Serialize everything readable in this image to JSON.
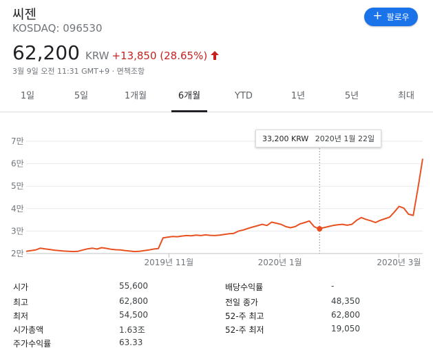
{
  "header": {
    "name": "씨젠",
    "ticker": "KOSDAQ: 096530",
    "follow_label": "팔로우"
  },
  "quote": {
    "price": "62,200",
    "currency": "KRW",
    "change": "+13,850 (28.65%)",
    "meta": "3월 9일 오전 11:31 GMT+9 · 면책조항"
  },
  "tabs": [
    {
      "label": "1일"
    },
    {
      "label": "5일"
    },
    {
      "label": "1개월"
    },
    {
      "label": "6개월",
      "active": true
    },
    {
      "label": "YTD"
    },
    {
      "label": "1년"
    },
    {
      "label": "5년"
    },
    {
      "label": "최대"
    }
  ],
  "colors": {
    "accent": "#1a73e8",
    "line": "#e8501f",
    "down": "#c5221f"
  },
  "chart_data": {
    "type": "line",
    "y_ticks": [
      "7만",
      "6만",
      "5만",
      "4만",
      "3만",
      "2만"
    ],
    "y_tick_values": [
      70000,
      60000,
      50000,
      40000,
      30000,
      20000
    ],
    "ylim": [
      20000,
      70000
    ],
    "x_tick_labels": [
      "2019년 11월",
      "2020년 1월",
      "2020년 3월"
    ],
    "x_tick_positions": [
      0.36,
      0.64,
      0.94
    ],
    "tooltip": {
      "price": "33,200 KRW",
      "date": "2020년 1월 22일",
      "position": 0.74
    },
    "values": [
      21000,
      21300,
      21600,
      22400,
      22100,
      21800,
      21500,
      21300,
      21100,
      21000,
      20900,
      21000,
      21600,
      22100,
      22400,
      22000,
      22600,
      22300,
      21900,
      21700,
      21600,
      21300,
      21100,
      20900,
      21000,
      21300,
      21600,
      22000,
      22200,
      27000,
      27300,
      27600,
      27500,
      27800,
      28000,
      27900,
      28200,
      28000,
      28300,
      28100,
      28000,
      28200,
      28500,
      28800,
      29000,
      30000,
      30500,
      31200,
      31800,
      32400,
      33000,
      32500,
      34000,
      33500,
      33000,
      32000,
      31500,
      32000,
      33200,
      33800,
      34500,
      32000,
      31000,
      31500,
      32000,
      32500,
      32800,
      33000,
      32600,
      33000,
      34800,
      36000,
      35200,
      34600,
      33800,
      34800,
      35500,
      36200,
      38500,
      41000,
      40200,
      37500,
      37000,
      49000,
      62200
    ]
  },
  "stats": {
    "left": [
      {
        "label": "시가",
        "value": "55,600"
      },
      {
        "label": "최고",
        "value": "62,800"
      },
      {
        "label": "최저",
        "value": "54,500"
      },
      {
        "label": "시가총액",
        "value": "1.63조"
      },
      {
        "label": "주가수익률",
        "value": "63.33"
      }
    ],
    "right": [
      {
        "label": "배당수익률",
        "value": "-"
      },
      {
        "label": "전일 종가",
        "value": "48,350"
      },
      {
        "label": "52-주 최고",
        "value": "62,800"
      },
      {
        "label": "52-주 최저",
        "value": "19,050"
      }
    ]
  }
}
